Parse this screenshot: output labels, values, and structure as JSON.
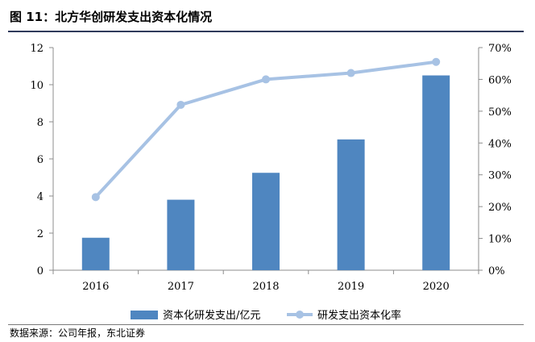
{
  "figure": {
    "title": "图 11：北方华创研发支出资本化情况",
    "source": "数据来源：公司年报，东北证券"
  },
  "chart_data": {
    "type": "bar",
    "title": "图 11：北方华创研发支出资本化情况",
    "categories": [
      "2016",
      "2017",
      "2018",
      "2019",
      "2020"
    ],
    "series": [
      {
        "name": "资本化研发支出/亿元",
        "type": "bar",
        "axis": "left",
        "color": "#4f86c0",
        "values": [
          1.75,
          3.8,
          5.25,
          7.05,
          10.5
        ]
      },
      {
        "name": "研发支出资本化率",
        "type": "line",
        "axis": "right",
        "color": "#a7c2e4",
        "values": [
          0.23,
          0.52,
          0.6,
          0.62,
          0.655
        ]
      }
    ],
    "y_left": {
      "min": 0,
      "max": 12,
      "ticks": [
        "0",
        "2",
        "4",
        "6",
        "8",
        "10",
        "12"
      ]
    },
    "y_right": {
      "min": 0,
      "max": 0.7,
      "ticks": [
        "0%",
        "10%",
        "20%",
        "30%",
        "40%",
        "50%",
        "60%",
        "70%"
      ]
    },
    "grid": false,
    "legend_position": "bottom"
  }
}
